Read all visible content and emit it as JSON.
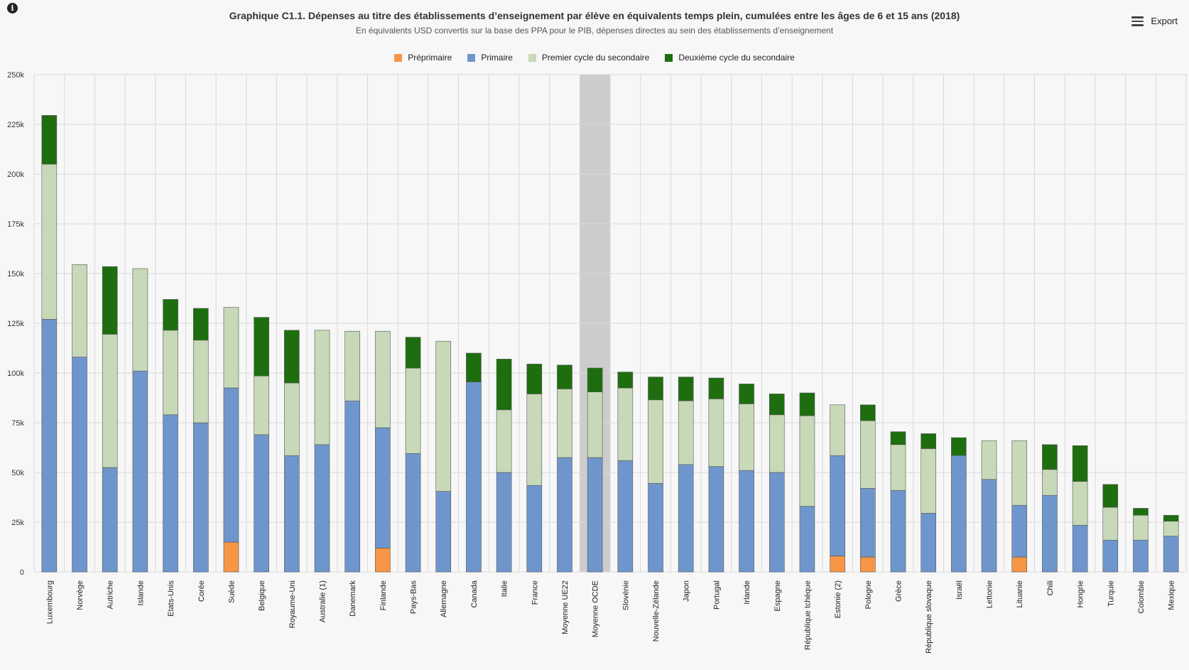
{
  "header": {
    "info_icon": "info-icon",
    "export_label": "Export",
    "export_icon": "hamburger-menu-icon"
  },
  "chart_data": {
    "type": "bar",
    "stacked": true,
    "title": "Graphique C1.1. Dépenses au titre des établissements d’enseignement par élève en équivalents temps plein, cumulées entre les âges de 6 et 15 ans (2018)",
    "subtitle": "En équivalents USD convertis sur la base des PPA pour le PIB, dépenses directes au sein des établissements d’enseignement",
    "ylim": [
      0,
      250000
    ],
    "yticks": [
      0,
      25000,
      50000,
      75000,
      100000,
      125000,
      150000,
      175000,
      200000,
      225000,
      250000
    ],
    "ytick_labels": [
      "0",
      "25k",
      "50k",
      "75k",
      "100k",
      "125k",
      "150k",
      "175k",
      "200k",
      "225k",
      "250k"
    ],
    "legend_position": "top-center",
    "highlighted_category": "Moyenne OCDE",
    "categories": [
      "Luxembourg",
      "Norvège",
      "Autriche",
      "Islande",
      "Etats-Unis",
      "Corée",
      "Suède",
      "Belgique",
      "Royaume-Uni",
      "Australie (1)",
      "Danemark",
      "Finlande",
      "Pays-Bas",
      "Allemagne",
      "Canada",
      "Italie",
      "France",
      "Moyenne UE22",
      "Moyenne OCDE",
      "Slovénie",
      "Nouvelle-Zélande",
      "Japon",
      "Portugal",
      "Irlande",
      "Espagne",
      "République tchèque",
      "Estonie (2)",
      "Pologne",
      "Grèce",
      "République slovaque",
      "Israël",
      "Lettonie",
      "Lituanie",
      "Chili",
      "Hongrie",
      "Turquie",
      "Colombie",
      "Mexique"
    ],
    "series": [
      {
        "name": "Préprimaire",
        "color": "#f79646",
        "values": [
          0,
          0,
          0,
          0,
          0,
          0,
          15000,
          0,
          0,
          0,
          0,
          12000,
          0,
          0,
          0,
          0,
          0,
          0,
          0,
          0,
          0,
          0,
          0,
          0,
          0,
          0,
          8000,
          7500,
          0,
          0,
          0,
          0,
          7500,
          0,
          0,
          0,
          0,
          0
        ]
      },
      {
        "name": "Primaire",
        "color": "#6f96cc",
        "values": [
          127000,
          108000,
          52500,
          101000,
          79000,
          75000,
          77500,
          69000,
          58500,
          64000,
          86000,
          60500,
          59500,
          40500,
          95500,
          50000,
          43500,
          57500,
          57500,
          56000,
          44500,
          54000,
          53000,
          51000,
          50000,
          33000,
          50500,
          34500,
          41000,
          29500,
          58500,
          46500,
          26000,
          38500,
          23500,
          16000,
          16000,
          18000
        ]
      },
      {
        "name": "Premier cycle du secondaire",
        "color": "#c7d9b8",
        "values": [
          78000,
          46500,
          67000,
          51500,
          42500,
          41500,
          40500,
          29500,
          36500,
          57500,
          35000,
          48500,
          43000,
          75500,
          0,
          31500,
          46000,
          34500,
          33000,
          36500,
          42000,
          32000,
          34000,
          33500,
          29000,
          45500,
          25500,
          34000,
          23000,
          32500,
          0,
          19500,
          32500,
          13000,
          22000,
          16500,
          12500,
          7500
        ]
      },
      {
        "name": "Deuxième cycle du secondaire",
        "color": "#1e6e0f",
        "values": [
          24500,
          0,
          34000,
          0,
          15500,
          16000,
          0,
          29500,
          26500,
          0,
          0,
          0,
          15500,
          0,
          14500,
          25500,
          15000,
          12000,
          12000,
          8000,
          11500,
          12000,
          10500,
          10000,
          10500,
          11500,
          0,
          8000,
          6500,
          7500,
          9000,
          0,
          0,
          12500,
          18000,
          11500,
          3500,
          3000
        ]
      }
    ]
  }
}
